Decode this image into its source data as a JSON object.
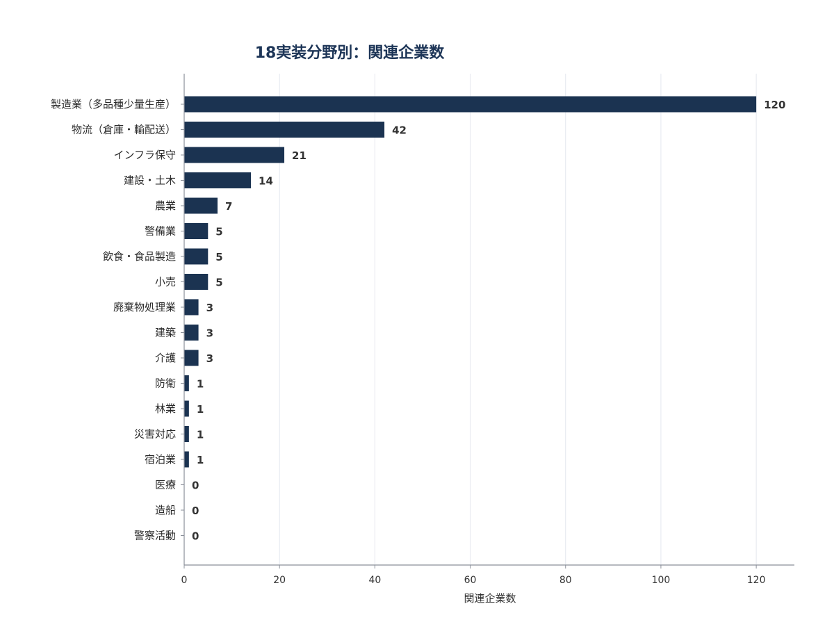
{
  "chart_data": {
    "type": "bar",
    "orientation": "horizontal",
    "title": "18実装分野別：関連企業数",
    "xlabel": "関連企業数",
    "ylabel": "",
    "xlim": [
      0,
      128
    ],
    "xticks": [
      0,
      20,
      40,
      60,
      80,
      100,
      120
    ],
    "grid": "vertical",
    "categories": [
      "製造業（多品種少量生産）",
      "物流（倉庫・輸配送）",
      "インフラ保守",
      "建設・土木",
      "農業",
      "警備業",
      "飲食・食品製造",
      "小売",
      "廃棄物処理業",
      "建築",
      "介護",
      "防衛",
      "林業",
      "災害対応",
      "宿泊業",
      "医療",
      "造船",
      "警察活動"
    ],
    "values": [
      120,
      42,
      21,
      14,
      7,
      5,
      5,
      5,
      3,
      3,
      3,
      1,
      1,
      1,
      1,
      0,
      0,
      0
    ],
    "value_labels": [
      "120",
      "42",
      "21",
      "14",
      "7",
      "5",
      "5",
      "5",
      "3",
      "3",
      "3",
      "1",
      "1",
      "1",
      "1",
      "0",
      "0",
      "0"
    ],
    "colors": {
      "bar": "#1b3351",
      "title": "#1d3557",
      "grid": "#e4e7ee",
      "axis": "#8a8f99"
    }
  }
}
